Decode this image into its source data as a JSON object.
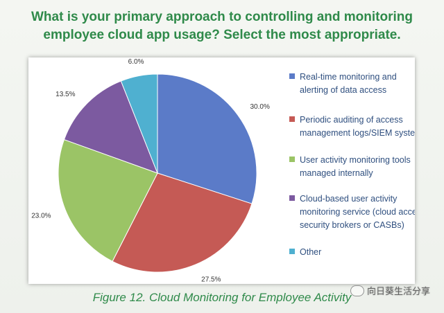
{
  "title_line1": "What is your primary approach to controlling and monitoring",
  "title_line2": "employee cloud app usage? Select the most appropriate.",
  "caption": "Figure 12. Cloud Monitoring for Employee Activity",
  "watermark": "向日葵生活分享",
  "chart_data": {
    "type": "pie",
    "slices": [
      {
        "label": [
          "Real-time monitoring and",
          "alerting of data access"
        ],
        "value": 30.0,
        "display": "30.0%",
        "color": "#5b7bc8"
      },
      {
        "label": [
          "Periodic auditing of access",
          "management logs/SIEM systems"
        ],
        "value": 27.5,
        "display": "27.5%",
        "color": "#c55a55"
      },
      {
        "label": [
          "User activity monitoring tools",
          "managed internally"
        ],
        "value": 23.0,
        "display": "23.0%",
        "color": "#9bc466"
      },
      {
        "label": [
          "Cloud-based user activity",
          "monitoring service (cloud access",
          "security brokers or CASBs)"
        ],
        "value": 13.5,
        "display": "13.5%",
        "color": "#7c5aa0"
      },
      {
        "label": [
          "Other"
        ],
        "value": 6.0,
        "display": "6.0%",
        "color": "#4fb0d0"
      }
    ],
    "legend_position": "right"
  }
}
